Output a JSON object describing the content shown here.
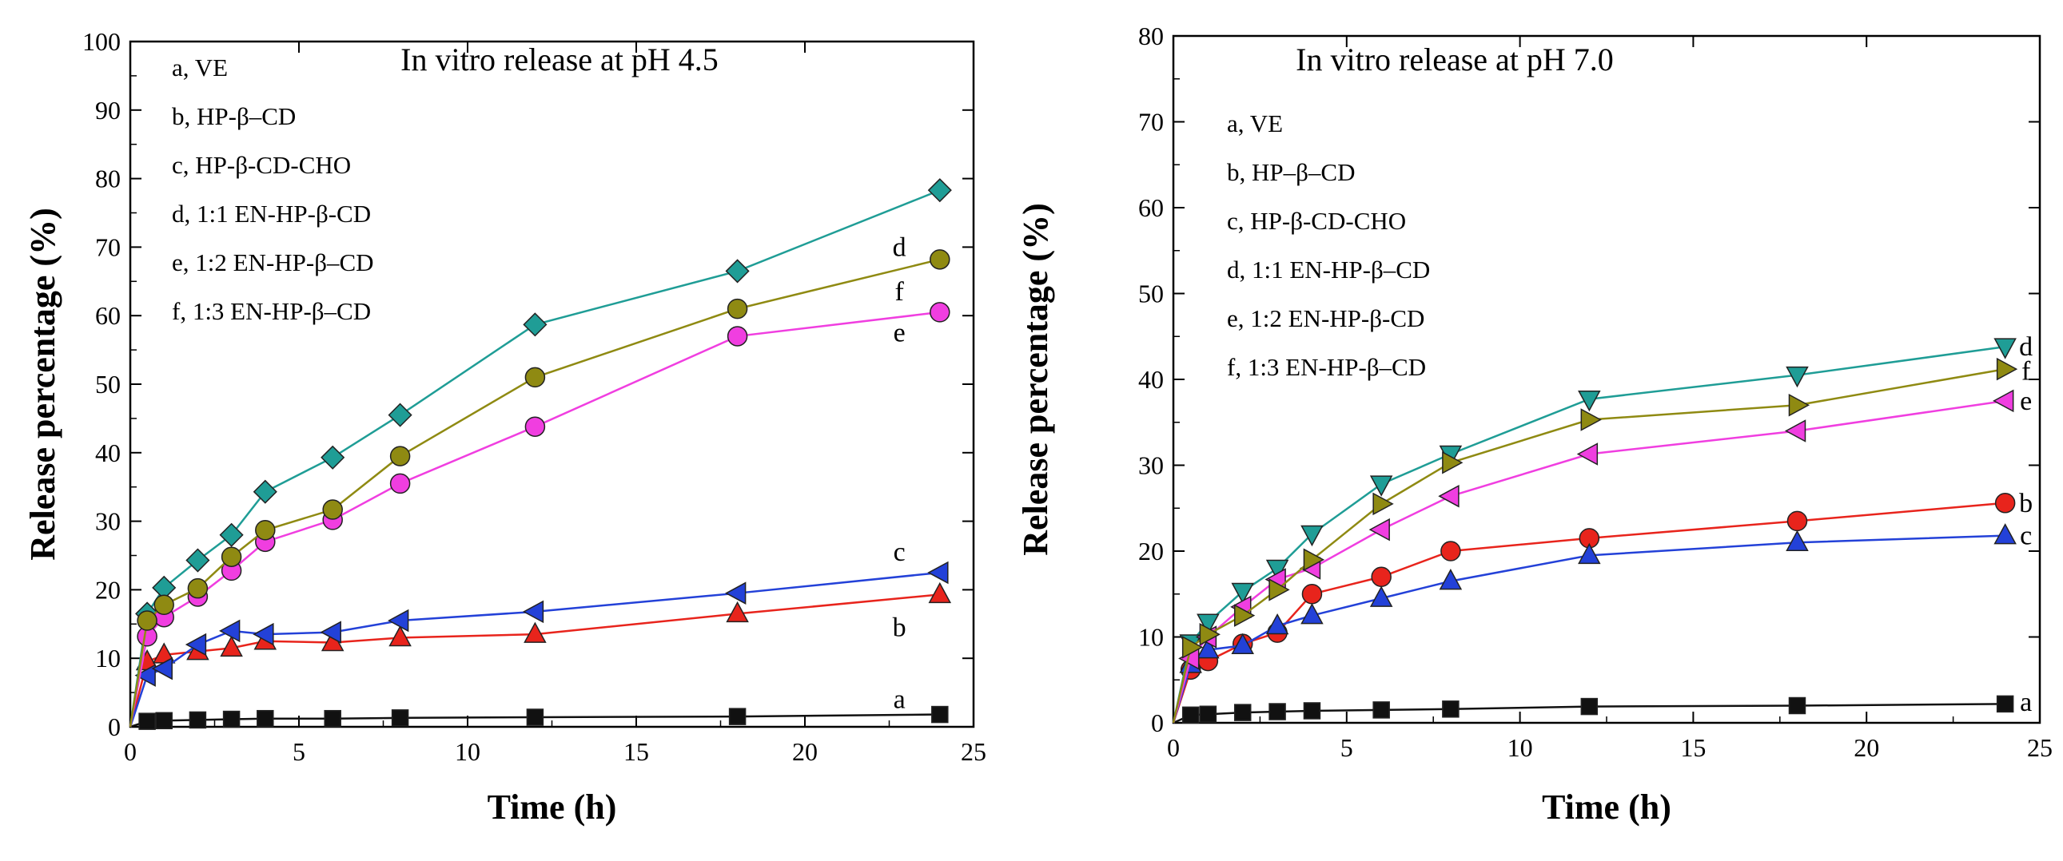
{
  "chart_data": [
    {
      "type": "line",
      "title": "In vitro release at pH 4.5",
      "xlabel": "Time (h)",
      "ylabel": "Release percentage (%)",
      "xlim": [
        0,
        25
      ],
      "ylim": [
        0,
        100
      ],
      "xticks": [
        0,
        5,
        10,
        15,
        20,
        25
      ],
      "yticks": [
        0,
        10,
        20,
        30,
        40,
        50,
        60,
        70,
        80,
        90,
        100
      ],
      "legend": [
        "a, VE",
        "b, HP-β–CD",
        "c, HP-β-CD-CHO",
        "d, 1:1 EN-HP-β-CD",
        "e, 1:2 EN-HP-β–CD",
        "f, 1:3 EN-HP-β–CD"
      ],
      "series": [
        {
          "name": "a",
          "label": "a",
          "color": "#111111",
          "marker": "square",
          "label_x": 22.8,
          "label_y": 4,
          "x": [
            0,
            0.5,
            1,
            2,
            3,
            4,
            6,
            8,
            12,
            18,
            24
          ],
          "values": [
            0,
            0.8,
            0.9,
            1.0,
            1.1,
            1.2,
            1.2,
            1.3,
            1.4,
            1.5,
            1.8
          ]
        },
        {
          "name": "b",
          "label": "b",
          "color": "#e8241c",
          "marker": "triangle-up",
          "label_x": 22.8,
          "label_y": 14.5,
          "x": [
            0,
            0.5,
            1,
            2,
            3,
            4,
            6,
            8,
            12,
            18,
            24
          ],
          "values": [
            0,
            9.5,
            10.5,
            11,
            11.5,
            12.5,
            12.3,
            13,
            13.5,
            16.5,
            19.3
          ]
        },
        {
          "name": "c",
          "label": "c",
          "color": "#2341d8",
          "marker": "triangle-left",
          "label_x": 22.8,
          "label_y": 25.5,
          "x": [
            0,
            0.5,
            1,
            2,
            3,
            4,
            6,
            8,
            12,
            18,
            24
          ],
          "values": [
            0,
            7.5,
            8.5,
            12,
            14,
            13.5,
            13.8,
            15.5,
            16.8,
            19.5,
            22.5
          ]
        },
        {
          "name": "d",
          "label": "d",
          "color": "#1f9d96",
          "marker": "diamond",
          "label_x": 22.8,
          "label_y": 70,
          "x": [
            0,
            0.5,
            1,
            2,
            3,
            4,
            6,
            8,
            12,
            18,
            24
          ],
          "values": [
            0,
            16.5,
            20.3,
            24.3,
            28,
            34.3,
            39.3,
            45.5,
            58.7,
            66.5,
            78.3
          ]
        },
        {
          "name": "e",
          "label": "e",
          "color": "#f03ee0",
          "marker": "circle",
          "label_x": 22.8,
          "label_y": 57.5,
          "x": [
            0,
            0.5,
            1,
            2,
            3,
            4,
            6,
            8,
            12,
            18,
            24
          ],
          "values": [
            0,
            13.2,
            16,
            19,
            22.8,
            27,
            30.2,
            35.5,
            43.8,
            57,
            60.5
          ]
        },
        {
          "name": "f",
          "label": "f",
          "color": "#8f8a12",
          "marker": "circle",
          "label_x": 22.8,
          "label_y": 63.5,
          "x": [
            0,
            0.5,
            1,
            2,
            3,
            4,
            6,
            8,
            12,
            18,
            24
          ],
          "values": [
            0,
            15.5,
            17.8,
            20.2,
            24.8,
            28.7,
            31.7,
            39.5,
            51,
            61,
            68.2
          ]
        }
      ]
    },
    {
      "type": "line",
      "title": "In vitro release at pH 7.0",
      "xlabel": "Time (h)",
      "ylabel": "Release percentage (%)",
      "xlim": [
        0,
        25
      ],
      "ylim": [
        0,
        80
      ],
      "xticks": [
        0,
        5,
        10,
        15,
        20,
        25
      ],
      "yticks": [
        0,
        10,
        20,
        30,
        40,
        50,
        60,
        70,
        80
      ],
      "legend": [
        "a, VE",
        "b, HP–β–CD",
        "c, HP-β-CD-CHO",
        "d, 1:1 EN-HP-β–CD",
        "e, 1:2 EN-HP-β-CD",
        "f, 1:3 EN-HP-β–CD"
      ],
      "series": [
        {
          "name": "a",
          "label": "a",
          "color": "#111111",
          "marker": "square",
          "label_x": 24.6,
          "label_y": 2.4,
          "x": [
            0,
            0.5,
            1,
            2,
            3,
            4,
            6,
            8,
            12,
            18,
            24
          ],
          "values": [
            0,
            0.9,
            1.0,
            1.2,
            1.3,
            1.4,
            1.5,
            1.6,
            1.9,
            2.0,
            2.2
          ]
        },
        {
          "name": "b",
          "label": "b",
          "color": "#e8241c",
          "marker": "circle",
          "label_x": 24.6,
          "label_y": 25.6,
          "x": [
            0,
            0.5,
            1,
            2,
            3,
            4,
            6,
            8,
            12,
            18,
            24
          ],
          "values": [
            0,
            6.2,
            7.2,
            9.2,
            10.5,
            15,
            17,
            20,
            21.5,
            23.5,
            25.6
          ]
        },
        {
          "name": "c",
          "label": "c",
          "color": "#2341d8",
          "marker": "triangle-up",
          "label_x": 24.6,
          "label_y": 21.8,
          "x": [
            0,
            0.5,
            1,
            2,
            3,
            4,
            6,
            8,
            12,
            18,
            24
          ],
          "values": [
            0,
            6.8,
            8.5,
            9.0,
            11.3,
            12.5,
            14.5,
            16.5,
            19.5,
            21,
            21.8
          ]
        },
        {
          "name": "d",
          "label": "d",
          "color": "#1f9d96",
          "marker": "triangle-down",
          "label_x": 24.6,
          "label_y": 43.8,
          "x": [
            0,
            0.5,
            1,
            2,
            3,
            4,
            6,
            8,
            12,
            18,
            24
          ],
          "values": [
            0,
            9.3,
            11.7,
            15.3,
            18,
            22,
            27.8,
            31.3,
            37.7,
            40.5,
            43.8
          ]
        },
        {
          "name": "e",
          "label": "e",
          "color": "#f03ee0",
          "marker": "triangle-left",
          "label_x": 24.6,
          "label_y": 37.5,
          "x": [
            0,
            0.5,
            1,
            2,
            3,
            4,
            6,
            8,
            12,
            18,
            24
          ],
          "values": [
            0,
            7.5,
            10,
            13.5,
            16.7,
            18,
            22.5,
            26.4,
            31.3,
            34,
            37.5
          ]
        },
        {
          "name": "f",
          "label": "f",
          "color": "#8f8a12",
          "marker": "triangle-right",
          "label_x": 24.6,
          "label_y": 41,
          "x": [
            0,
            0.5,
            1,
            2,
            3,
            4,
            6,
            8,
            12,
            18,
            24
          ],
          "values": [
            0,
            8.8,
            10.3,
            12.5,
            15.5,
            19,
            25.5,
            30.3,
            35.3,
            37,
            41.2
          ]
        }
      ]
    }
  ]
}
